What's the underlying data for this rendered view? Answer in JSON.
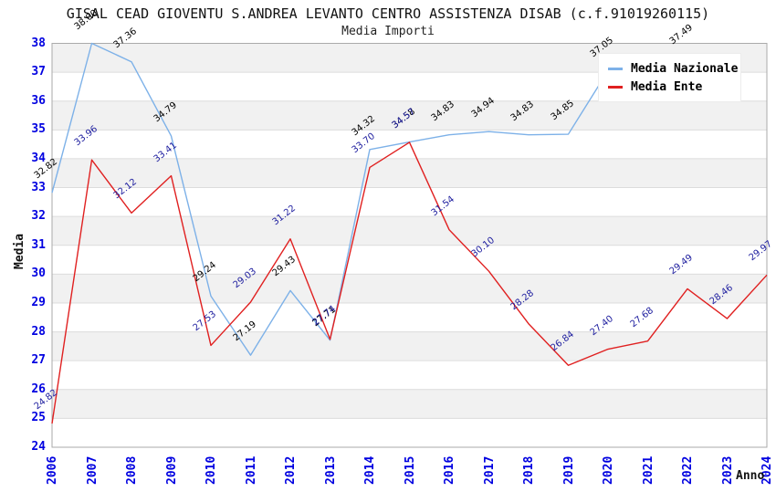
{
  "title": "GISAL CEAD GIOVENTU S.ANDREA LEVANTO CENTRO ASSISTENZA DISAB (c.f.91019260115)",
  "subtitle": "Media Importi",
  "legend": [
    {
      "label": "Media Nazionale",
      "color": "#7db1e8"
    },
    {
      "label": "Media Ente",
      "color": "#e02020"
    }
  ],
  "axes": {
    "y_title": "Media",
    "x_title": "Anno"
  },
  "colors": {
    "tick_label": "#0000e0",
    "band_gray": "#f1f1f1",
    "band_white": "#ffffff",
    "grid_line": "#dcdcdc",
    "plot_border": "#aaaaaa"
  },
  "chart_data": {
    "type": "line",
    "x": [
      2006,
      2007,
      2008,
      2009,
      2010,
      2011,
      2012,
      2013,
      2014,
      2015,
      2016,
      2017,
      2018,
      2019,
      2020,
      2021,
      2022,
      2023,
      2024
    ],
    "y_ticks": [
      24,
      25,
      26,
      27,
      28,
      29,
      30,
      31,
      32,
      33,
      34,
      35,
      36,
      37,
      38
    ],
    "ylim": [
      24,
      38
    ],
    "xlabel": "Anno",
    "ylabel": "Media",
    "grid": true,
    "legend_position": "top-right",
    "series": [
      {
        "name": "Media Nazionale",
        "color": "#7db1e8",
        "label_color": "#000000",
        "values": [
          32.82,
          38.0,
          37.36,
          34.79,
          29.24,
          27.19,
          29.43,
          27.71,
          34.32,
          34.58,
          34.83,
          34.94,
          34.83,
          34.85,
          37.05,
          null,
          37.49,
          null,
          null
        ]
      },
      {
        "name": "Media Ente",
        "color": "#e02020",
        "label_color": "#1c1c9e",
        "values": [
          24.82,
          33.96,
          32.12,
          33.41,
          27.53,
          29.03,
          31.22,
          27.74,
          33.7,
          34.57,
          31.54,
          30.1,
          28.28,
          26.84,
          27.4,
          27.68,
          29.49,
          28.46,
          29.97
        ]
      }
    ]
  }
}
